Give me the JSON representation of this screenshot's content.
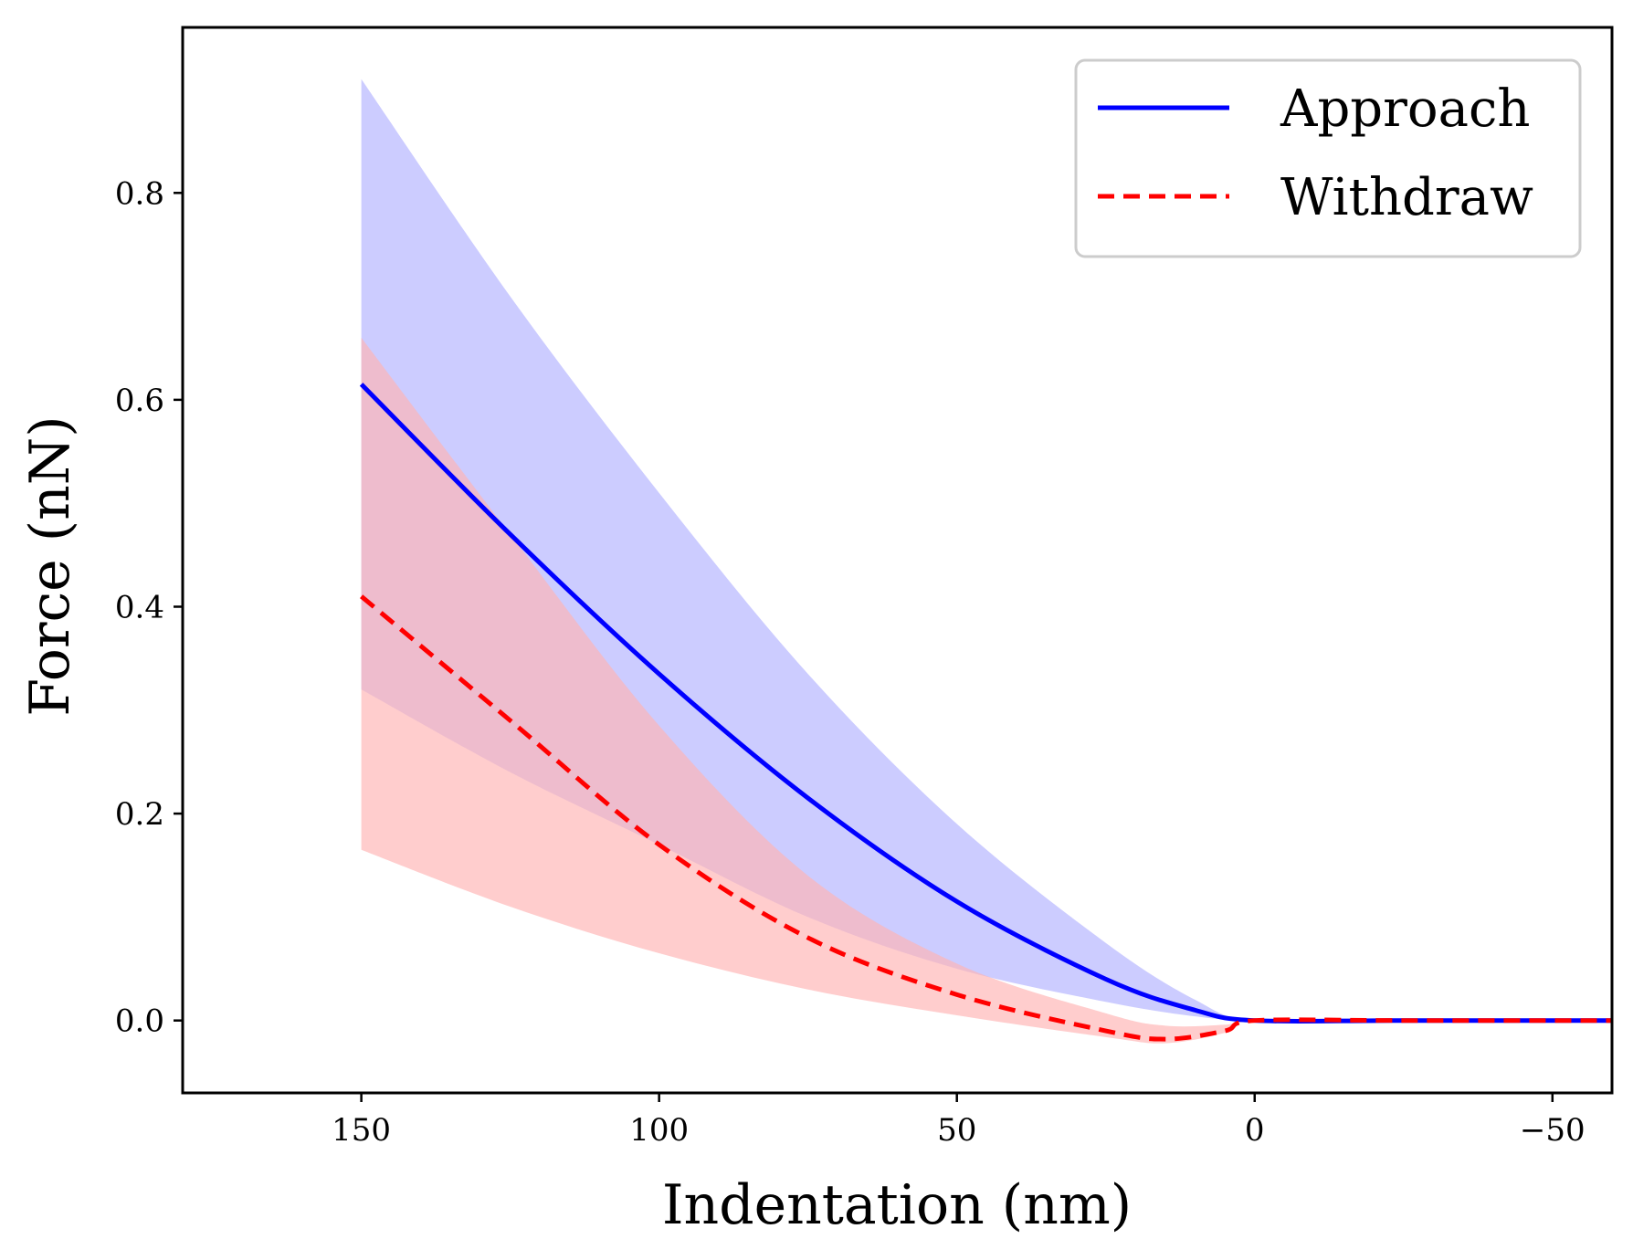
{
  "chart_data": {
    "type": "line",
    "title": "",
    "xlabel": "Indentation (nm)",
    "ylabel": "Force (nN)",
    "xlim": [
      180,
      -60
    ],
    "ylim": [
      -0.07,
      0.96
    ],
    "x_ticks": [
      150,
      100,
      50,
      0,
      -50
    ],
    "x_tick_labels": [
      "150",
      "100",
      "50",
      "0",
      "−50"
    ],
    "y_ticks": [
      0.0,
      0.2,
      0.4,
      0.6,
      0.8
    ],
    "y_tick_labels": [
      "0.0",
      "0.2",
      "0.4",
      "0.6",
      "0.8"
    ],
    "grid": false,
    "legend_position": "top-right",
    "series": [
      {
        "name": "Approach",
        "color": "#0000ff",
        "style": "solid",
        "x": [
          150,
          125,
          100,
          75,
          50,
          25,
          10,
          0,
          -25,
          -60
        ],
        "y": [
          0.615,
          0.47,
          0.335,
          0.215,
          0.115,
          0.04,
          0.01,
          0.0,
          0.0,
          0.0
        ],
        "band_upper": [
          0.91,
          0.7,
          0.51,
          0.335,
          0.19,
          0.075,
          0.02,
          0.0,
          0.0,
          0.0
        ],
        "band_lower": [
          0.32,
          0.24,
          0.17,
          0.1,
          0.05,
          0.018,
          0.004,
          0.0,
          0.0,
          0.0
        ],
        "band_color": "#ccccff"
      },
      {
        "name": "Withdraw",
        "color": "#ff0000",
        "style": "dashed",
        "x": [
          150,
          125,
          100,
          75,
          50,
          25,
          15,
          5,
          0,
          -25,
          -60
        ],
        "y": [
          0.41,
          0.29,
          0.17,
          0.08,
          0.025,
          -0.01,
          -0.018,
          -0.01,
          0.0,
          0.0,
          0.0
        ],
        "band_upper": [
          0.66,
          0.47,
          0.285,
          0.14,
          0.055,
          0.007,
          -0.005,
          -0.004,
          0.0,
          0.0,
          0.0
        ],
        "band_lower": [
          0.165,
          0.11,
          0.065,
          0.03,
          0.005,
          -0.016,
          -0.022,
          -0.012,
          0.0,
          0.0,
          0.0
        ],
        "band_color": "#ffb3b3"
      }
    ]
  }
}
